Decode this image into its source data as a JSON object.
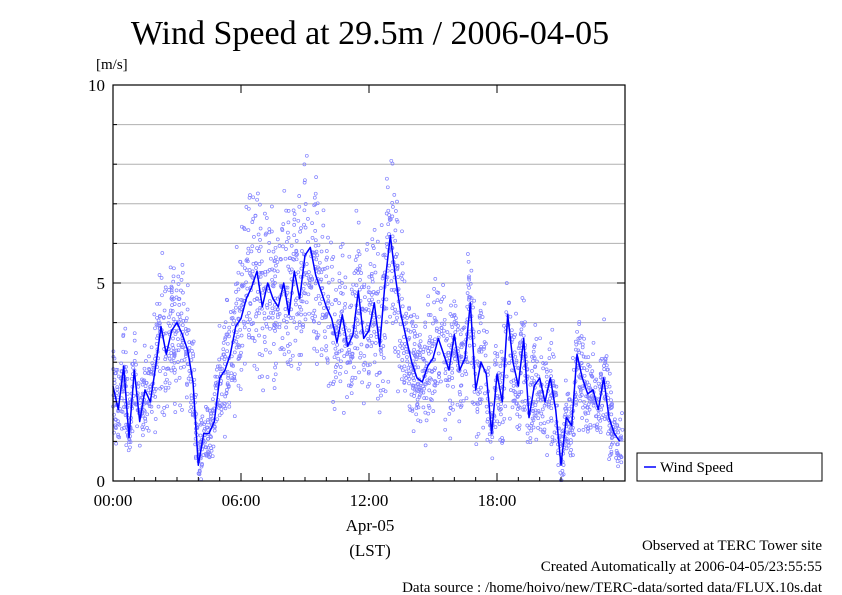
{
  "chart_data": {
    "type": "line",
    "title": "Wind Speed at 29.5m / 2006-04-05",
    "ylabel": "[m/s]",
    "ylim": [
      0,
      10
    ],
    "y_ticks": [
      "0",
      "5",
      "10"
    ],
    "x_ticks": [
      "00:00",
      "06:00",
      "12:00",
      "18:00"
    ],
    "x_tick_hours": [
      0,
      6,
      12,
      18
    ],
    "xlim_hours": [
      0,
      24
    ],
    "date_label": "Apr-05",
    "time_zone_label": "(LST)",
    "grid": true,
    "legend": "right",
    "series": [
      {
        "name": "Wind Speed",
        "color": "#0000ff",
        "x_hours": [
          0.0,
          0.25,
          0.5,
          0.75,
          1.0,
          1.25,
          1.5,
          1.75,
          2.0,
          2.25,
          2.5,
          2.75,
          3.0,
          3.25,
          3.5,
          3.75,
          4.0,
          4.25,
          4.5,
          4.75,
          5.0,
          5.25,
          5.5,
          5.75,
          6.0,
          6.25,
          6.5,
          6.75,
          7.0,
          7.25,
          7.5,
          7.75,
          8.0,
          8.25,
          8.5,
          8.75,
          9.0,
          9.25,
          9.5,
          9.75,
          10.0,
          10.25,
          10.5,
          10.75,
          11.0,
          11.25,
          11.5,
          11.75,
          12.0,
          12.25,
          12.5,
          12.75,
          13.0,
          13.25,
          13.5,
          13.75,
          14.0,
          14.25,
          14.5,
          14.75,
          15.0,
          15.25,
          15.5,
          15.75,
          16.0,
          16.25,
          16.5,
          16.75,
          17.0,
          17.25,
          17.5,
          17.75,
          18.0,
          18.25,
          18.5,
          18.75,
          19.0,
          19.25,
          19.5,
          19.75,
          20.0,
          20.25,
          20.5,
          20.75,
          21.0,
          21.25,
          21.5,
          21.75,
          22.0,
          22.25,
          22.5,
          22.75,
          23.0,
          23.25,
          23.5,
          23.75
        ],
        "values": [
          2.4,
          1.8,
          2.9,
          1.1,
          2.8,
          1.5,
          2.3,
          2.0,
          2.9,
          3.9,
          3.2,
          3.8,
          4.0,
          3.7,
          3.3,
          2.5,
          0.4,
          1.2,
          1.2,
          1.5,
          2.6,
          2.8,
          3.2,
          3.9,
          4.1,
          4.6,
          4.9,
          5.3,
          4.4,
          5.0,
          4.6,
          4.4,
          5.0,
          4.2,
          5.3,
          4.6,
          5.7,
          5.9,
          5.2,
          4.8,
          4.4,
          4.1,
          3.5,
          4.2,
          3.4,
          3.7,
          4.8,
          3.6,
          3.8,
          4.5,
          3.4,
          5.0,
          6.2,
          5.1,
          4.2,
          3.6,
          3.0,
          2.6,
          2.5,
          2.9,
          3.1,
          3.6,
          3.2,
          2.8,
          3.7,
          2.8,
          3.1,
          4.5,
          2.3,
          3.0,
          2.7,
          1.2,
          2.7,
          2.0,
          4.2,
          3.0,
          2.4,
          3.6,
          1.6,
          2.4,
          2.6,
          2.0,
          2.6,
          1.8,
          0.4,
          1.6,
          1.4,
          3.2,
          2.6,
          2.2,
          2.3,
          1.8,
          2.6,
          1.6,
          1.2,
          1.0
        ]
      }
    ]
  },
  "footer": {
    "line1": "Observed at TERC Tower site",
    "line2": "Created Automatically at 2006-04-05/23:55:55",
    "line3": "Data source : /home/hoivo/new/TERC-data/sorted  data/FLUX.10s.dat"
  }
}
